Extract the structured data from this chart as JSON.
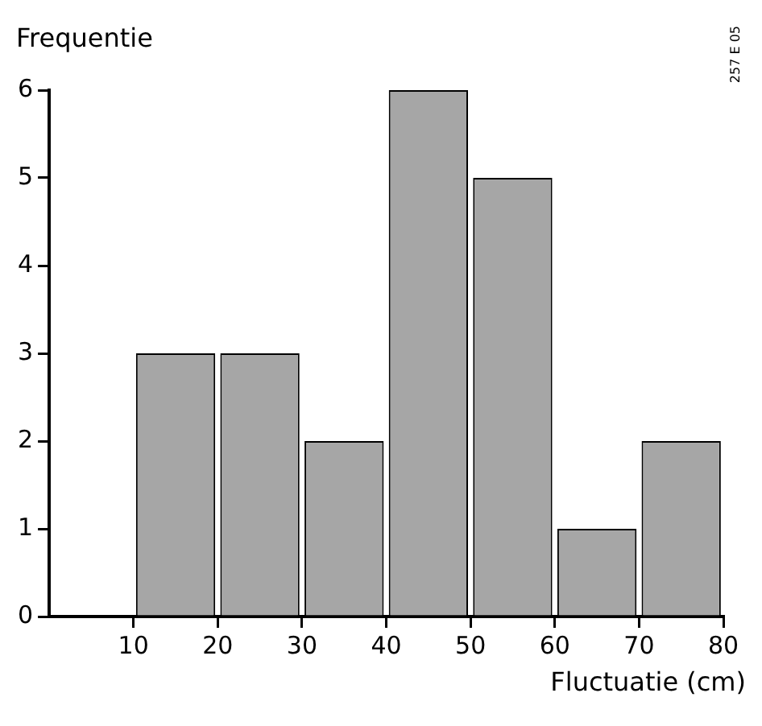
{
  "chart_data": {
    "type": "histogram",
    "ylabel": "Frequentie",
    "xlabel": "Fluctuatie (cm)",
    "annotations": [
      "257 E 05"
    ],
    "bins": [
      0,
      10,
      20,
      30,
      40,
      50,
      60,
      70,
      80
    ],
    "values": [
      0,
      3,
      3,
      2,
      6,
      5,
      1,
      2
    ],
    "color": "#a6a6a6",
    "xlim": [
      0,
      80
    ],
    "xticks": [
      10,
      20,
      30,
      40,
      50,
      60,
      70,
      80
    ],
    "ylim": [
      0,
      6
    ],
    "yticks": [
      0,
      1,
      2,
      3,
      4,
      5,
      6
    ],
    "grid": false,
    "legend": false
  }
}
